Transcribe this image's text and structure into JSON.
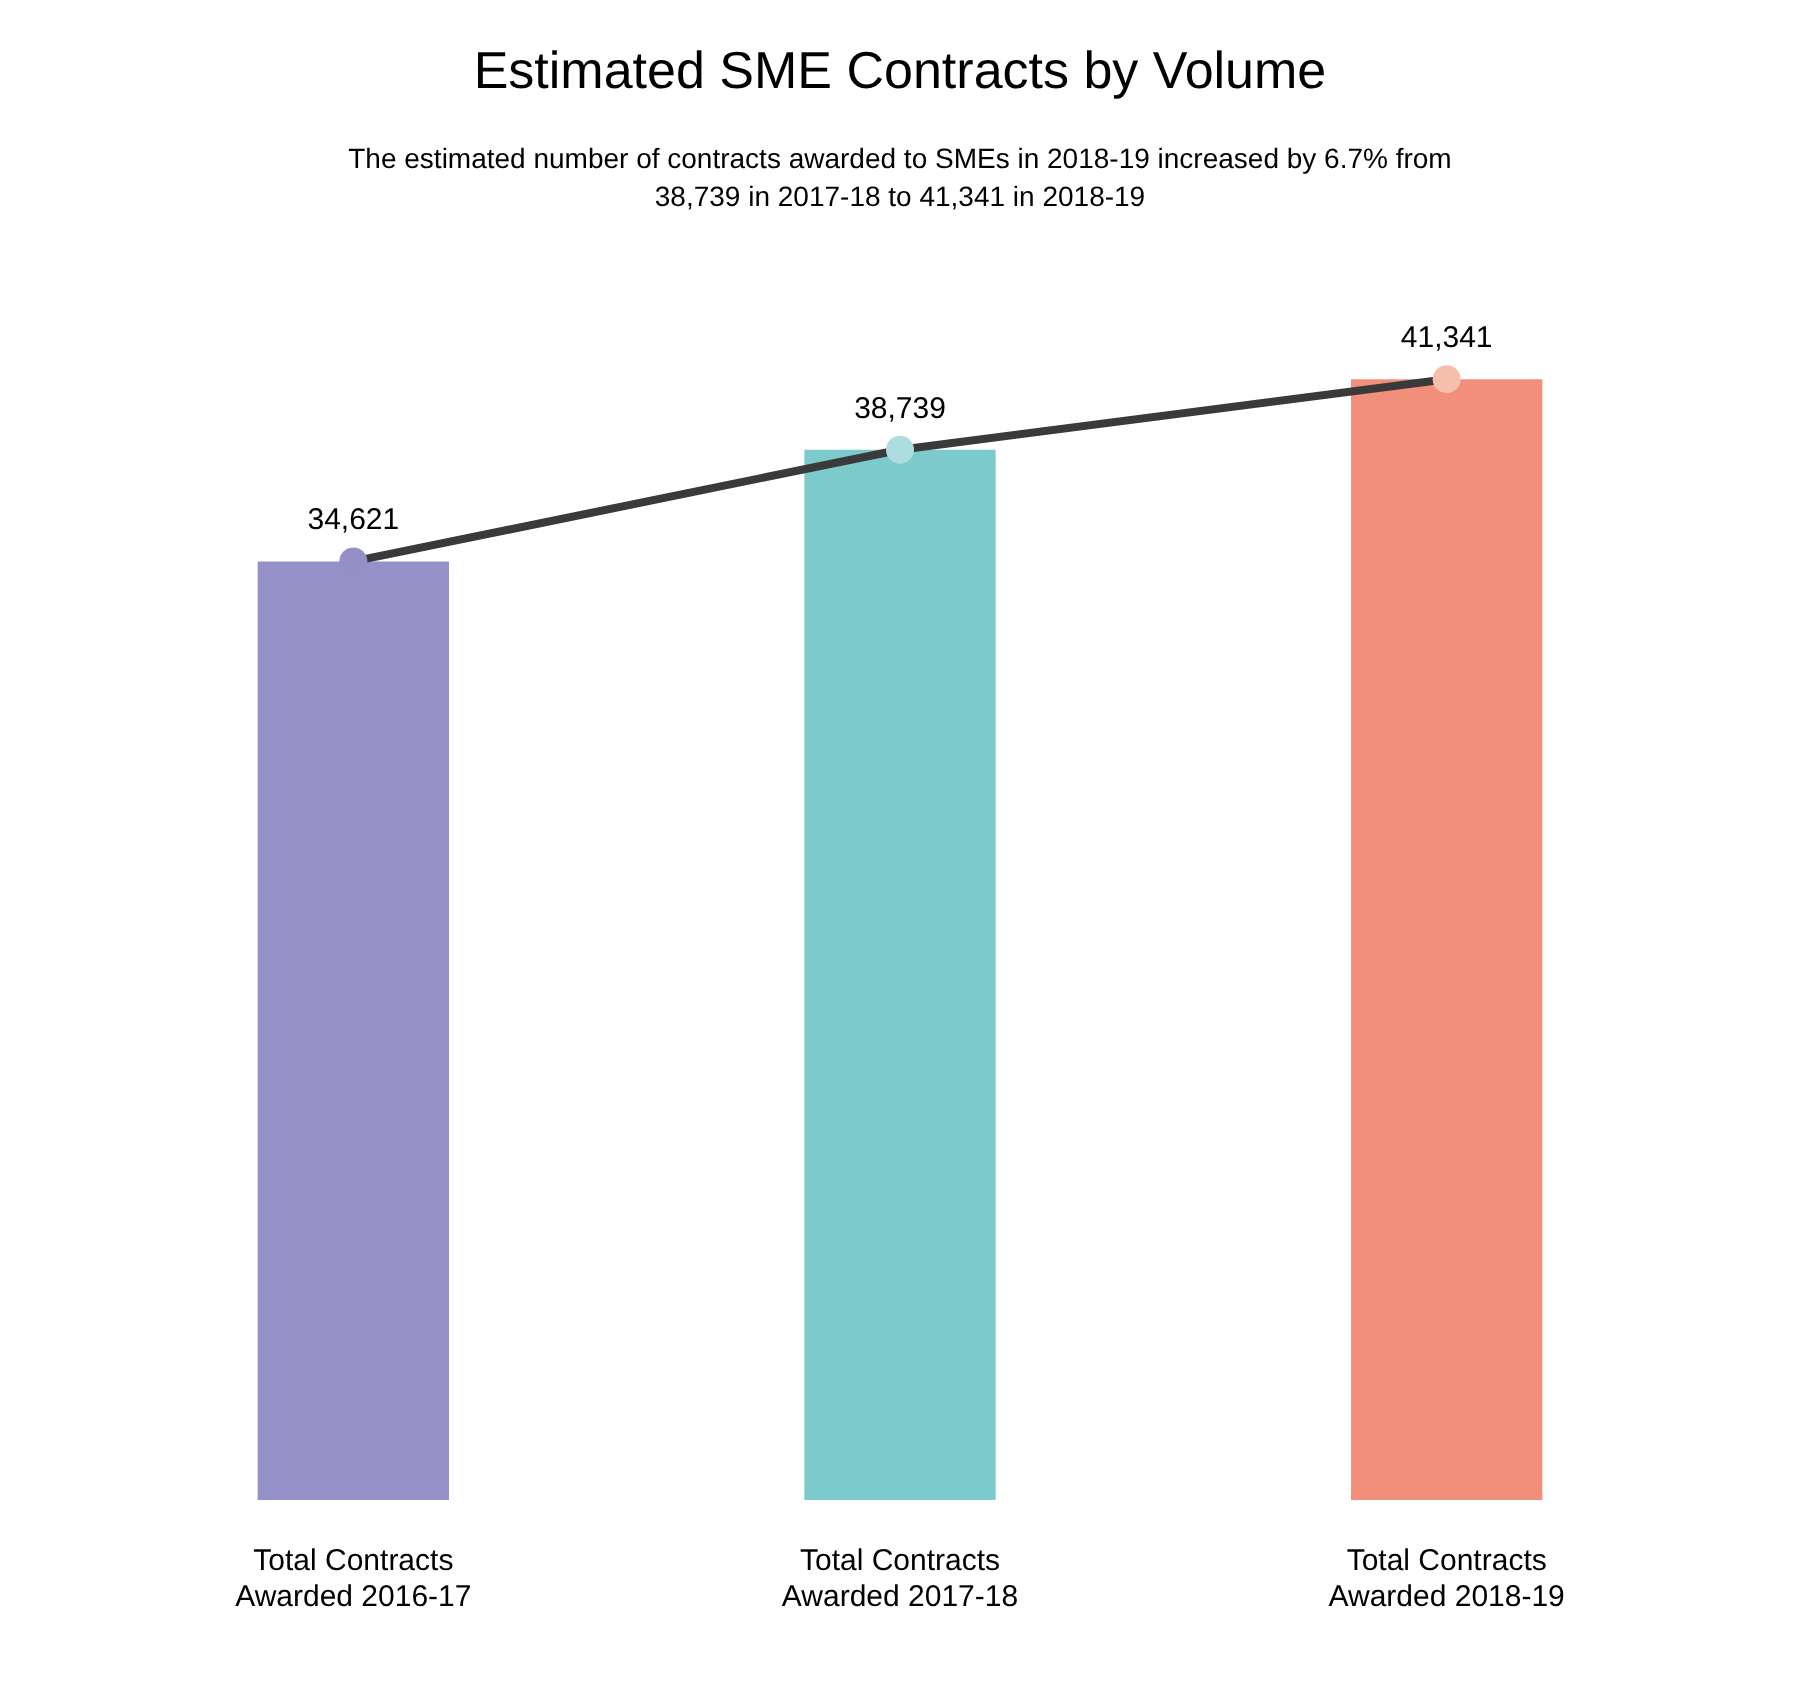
{
  "chart_data": {
    "type": "bar",
    "title": "Estimated SME Contracts by Volume",
    "subtitle": "The estimated number of contracts awarded to SMEs in 2018-19 increased by 6.7% from 38,739 in 2017-18 to 41,341 in 2018-19",
    "categories": [
      "Total Contracts Awarded 2016-17",
      "Total Contracts Awarded 2017-18",
      "Total Contracts Awarded 2018-19"
    ],
    "series": [
      {
        "colors": [
          "#9590c8",
          "#7ccacb",
          "#f28f7a"
        ],
        "values": [
          34621,
          38739,
          41341
        ]
      },
      {
        "type": "line",
        "color": "#3a3a3a",
        "colors": [
          "#948fc6",
          "#aedde0",
          "#f6bfad"
        ],
        "values": [
          34621,
          38739,
          41341
        ],
        "value_labels": [
          "34,621",
          "38,739",
          "41,341"
        ]
      }
    ],
    "tick_labels": "x",
    "grid": false,
    "legend": false,
    "marker": "circle",
    "line_style": "solid"
  }
}
